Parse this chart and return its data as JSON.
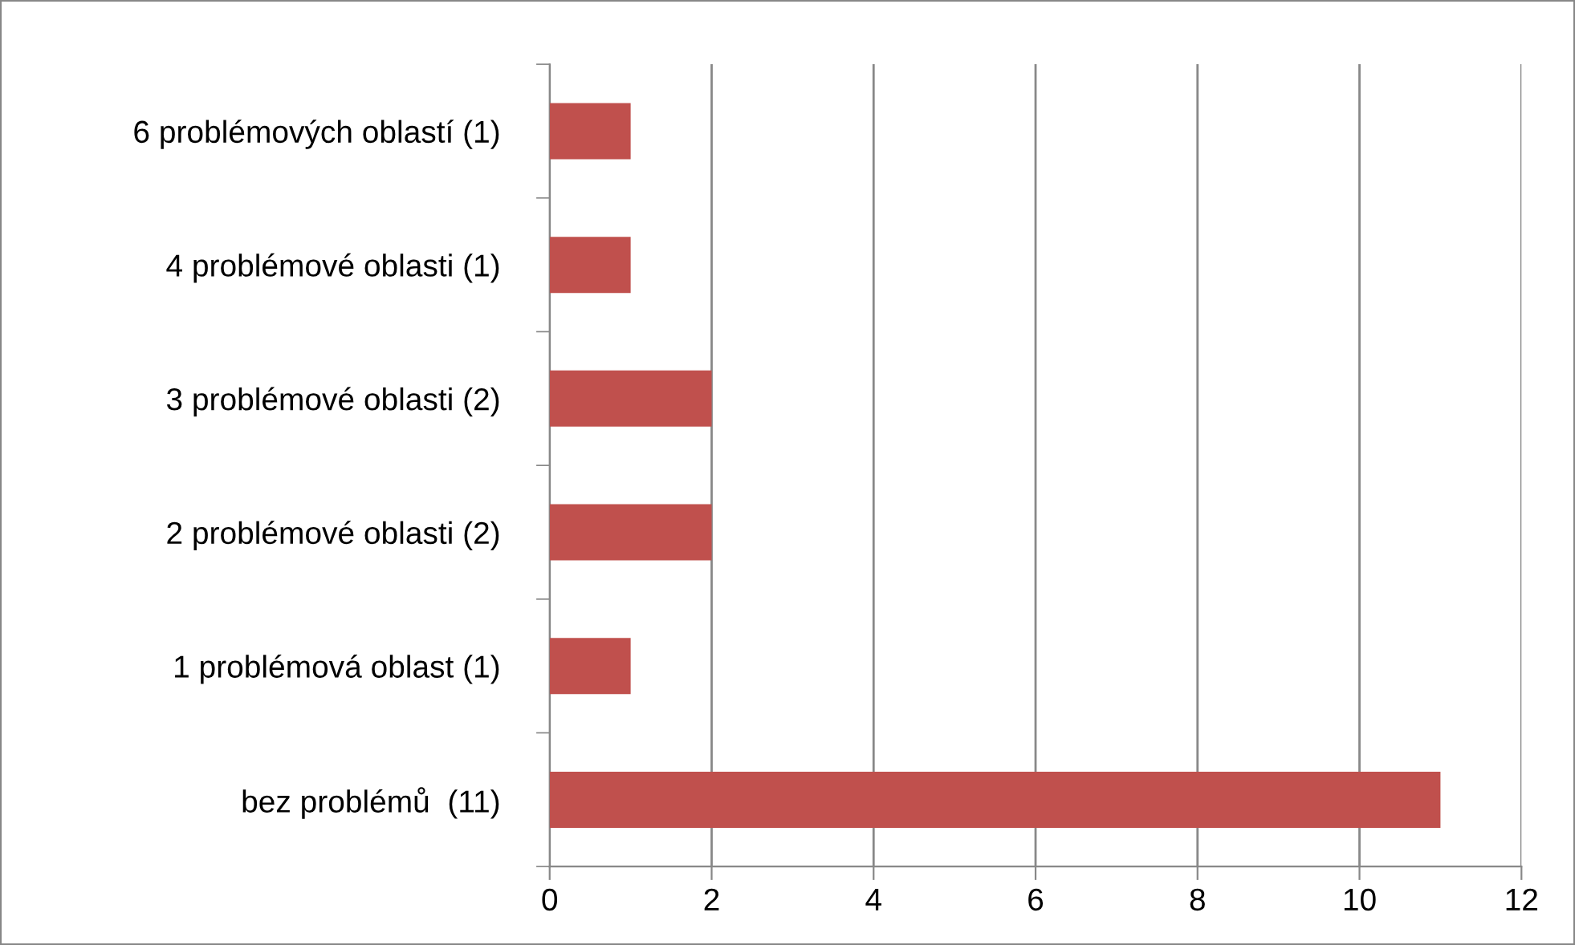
{
  "chart_data": {
    "type": "bar",
    "orientation": "horizontal",
    "categories": [
      "6 problémových oblastí (1)",
      "4 problémové oblasti (1)",
      "3 problémové oblasti (2)",
      "2 problémové oblasti (2)",
      "1 problémová oblast (1)",
      "bez problémů  (11)"
    ],
    "values": [
      1,
      1,
      2,
      2,
      1,
      11
    ],
    "color": "#c0504d",
    "xlim": [
      0,
      12
    ],
    "xticks": [
      0,
      2,
      4,
      6,
      8,
      10,
      12
    ],
    "grid": "x",
    "legend": false
  }
}
